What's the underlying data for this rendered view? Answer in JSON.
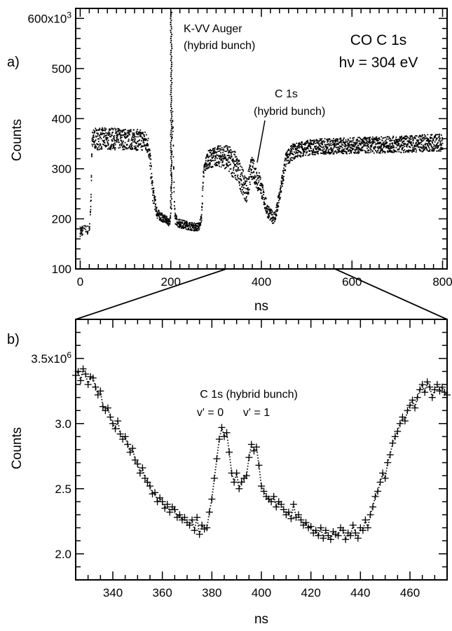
{
  "chart_data": [
    {
      "panel": "a)",
      "type": "scatter",
      "title_line1": "CO C 1s",
      "title_line2": "hν = 304 eV",
      "xlabel": "ns",
      "ylabel": "Counts",
      "xlim": [
        -10,
        810
      ],
      "ylim": [
        100,
        620
      ],
      "xticks": [
        "0",
        "200",
        "400",
        "600",
        "800"
      ],
      "yticks": [
        "100",
        "200",
        "300",
        "400",
        "500",
        "600x10³"
      ],
      "grid": false,
      "annotations": [
        {
          "text_line1": "K-VV Auger",
          "text_line2": "(hybrid bunch)",
          "x": 200,
          "y": 610
        },
        {
          "text_line1": "C 1s",
          "text_line2": "(hybrid bunch)",
          "x": 385,
          "y": 315
        }
      ],
      "profile_x": [
        0,
        10,
        20,
        24,
        26,
        30,
        40,
        100,
        140,
        150,
        155,
        160,
        170,
        185,
        192,
        196,
        198,
        200,
        202,
        204,
        206,
        208,
        210,
        218,
        230,
        250,
        262,
        268,
        272,
        280,
        300,
        320,
        340,
        355,
        362,
        368,
        372,
        378,
        385,
        392,
        398,
        405,
        412,
        420,
        426,
        432,
        440,
        455,
        470,
        490,
        520,
        600,
        700,
        800
      ],
      "profile_top": [
        185,
        188,
        186,
        250,
        375,
        380,
        382,
        380,
        378,
        370,
        330,
        275,
        220,
        208,
        204,
        200,
        205,
        230,
        330,
        420,
        330,
        240,
        210,
        200,
        197,
        192,
        192,
        210,
        300,
        335,
        345,
        348,
        340,
        310,
        290,
        285,
        300,
        325,
        315,
        300,
        290,
        260,
        235,
        220,
        215,
        220,
        260,
        335,
        350,
        355,
        360,
        362,
        365,
        370
      ],
      "profile_bot": [
        165,
        168,
        166,
        230,
        335,
        338,
        338,
        338,
        336,
        330,
        290,
        235,
        200,
        192,
        190,
        185,
        190,
        205,
        300,
        380,
        300,
        215,
        190,
        182,
        180,
        176,
        176,
        195,
        280,
        300,
        305,
        300,
        280,
        255,
        240,
        232,
        245,
        280,
        270,
        255,
        250,
        225,
        205,
        195,
        190,
        195,
        230,
        305,
        318,
        325,
        328,
        330,
        332,
        335
      ]
    },
    {
      "panel": "b)",
      "type": "line",
      "annotation_line1": "C 1s (hybrid bunch)",
      "vlabel_0": "v' = 0",
      "vlabel_1": "v' = 1",
      "xlabel": "ns",
      "ylabel": "Counts",
      "xlim": [
        325,
        475
      ],
      "ylim": [
        1.8,
        3.8
      ],
      "xticks": [
        "340",
        "360",
        "380",
        "400",
        "420",
        "440",
        "460"
      ],
      "yticks": [
        "2.0",
        "2.5",
        "3.0",
        "3.5x10⁶"
      ],
      "grid": false,
      "marker": "+",
      "linestyle": "dotted",
      "x": [
        325,
        326,
        327,
        328,
        329,
        330,
        331,
        332,
        333,
        334,
        335,
        336,
        337,
        338,
        339,
        340,
        341,
        342,
        343,
        344,
        345,
        346,
        347,
        348,
        349,
        350,
        351,
        352,
        353,
        354,
        355,
        356,
        357,
        358,
        359,
        360,
        361,
        362,
        363,
        364,
        365,
        366,
        367,
        368,
        369,
        370,
        371,
        372,
        373,
        374,
        375,
        376,
        377,
        378,
        379,
        380,
        381,
        382,
        383,
        384,
        385,
        386,
        387,
        388,
        389,
        390,
        391,
        392,
        393,
        394,
        395,
        396,
        397,
        398,
        399,
        400,
        401,
        402,
        403,
        404,
        405,
        406,
        407,
        408,
        409,
        410,
        411,
        412,
        413,
        414,
        415,
        416,
        417,
        418,
        419,
        420,
        421,
        422,
        423,
        424,
        425,
        426,
        427,
        428,
        429,
        430,
        431,
        432,
        433,
        434,
        435,
        436,
        437,
        438,
        439,
        440,
        441,
        442,
        443,
        444,
        445,
        446,
        447,
        448,
        449,
        450,
        451,
        452,
        453,
        454,
        455,
        456,
        457,
        458,
        459,
        460,
        461,
        462,
        463,
        464,
        465,
        466,
        467,
        468,
        469,
        470,
        471,
        472,
        473,
        474,
        475
      ],
      "y": [
        3.37,
        3.4,
        3.33,
        3.42,
        3.38,
        3.3,
        3.36,
        3.35,
        3.28,
        3.22,
        3.25,
        3.13,
        3.1,
        3.12,
        3.05,
        3.0,
        2.96,
        3.02,
        2.92,
        2.88,
        2.9,
        2.84,
        2.78,
        2.81,
        2.72,
        2.69,
        2.62,
        2.66,
        2.58,
        2.55,
        2.52,
        2.46,
        2.47,
        2.4,
        2.43,
        2.4,
        2.35,
        2.38,
        2.32,
        2.36,
        2.34,
        2.28,
        2.3,
        2.26,
        2.28,
        2.24,
        2.22,
        2.26,
        2.18,
        2.28,
        2.15,
        2.22,
        2.19,
        2.2,
        2.32,
        2.42,
        2.58,
        2.73,
        2.88,
        2.97,
        2.9,
        2.93,
        2.78,
        2.62,
        2.55,
        2.62,
        2.5,
        2.55,
        2.58,
        2.6,
        2.74,
        2.84,
        2.79,
        2.82,
        2.68,
        2.52,
        2.48,
        2.44,
        2.42,
        2.4,
        2.44,
        2.36,
        2.4,
        2.38,
        2.34,
        2.3,
        2.32,
        2.27,
        2.38,
        2.28,
        2.3,
        2.26,
        2.22,
        2.24,
        2.2,
        2.21,
        2.16,
        2.18,
        2.14,
        2.2,
        2.12,
        2.18,
        2.14,
        2.11,
        2.17,
        2.15,
        2.14,
        2.2,
        2.18,
        2.11,
        2.16,
        2.14,
        2.22,
        2.16,
        2.12,
        2.2,
        2.18,
        2.26,
        2.2,
        2.3,
        2.36,
        2.44,
        2.48,
        2.55,
        2.62,
        2.58,
        2.7,
        2.76,
        2.85,
        2.9,
        2.94,
        3.0,
        3.05,
        3.02,
        3.1,
        3.14,
        3.18,
        3.12,
        3.2,
        3.26,
        3.3,
        3.24,
        3.32,
        3.28,
        3.2,
        3.26,
        3.3,
        3.25,
        3.28,
        3.24,
        3.22
      ]
    }
  ]
}
